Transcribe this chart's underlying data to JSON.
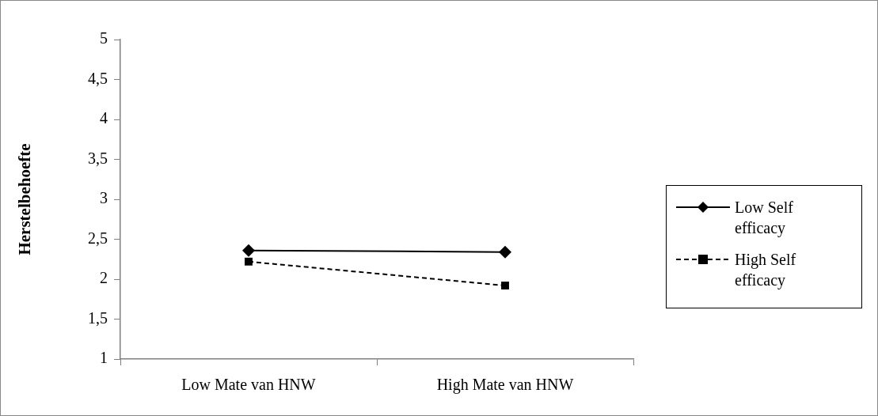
{
  "chart_data": {
    "type": "line",
    "ylabel": "Herstelbehoefte",
    "categories": [
      "Low Mate van HNW",
      "High Mate van HNW"
    ],
    "ylim": [
      1,
      5
    ],
    "yticks": [
      1,
      {
        "value": 1.5,
        "label": "1,5"
      },
      2,
      {
        "value": 2.5,
        "label": "2,5"
      },
      3,
      {
        "value": 3.5,
        "label": "3,5"
      },
      4,
      {
        "value": 4.5,
        "label": "4,5"
      },
      5
    ],
    "series": [
      {
        "name": "Low Self efficacy",
        "color": "#000000",
        "values": [
          2.36,
          2.34
        ],
        "marker": "diamond",
        "line_style": "solid"
      },
      {
        "name": "High Self efficacy",
        "color": "#000000",
        "values": [
          2.22,
          1.92
        ],
        "marker": "square",
        "line_style": "dashed"
      }
    ],
    "legend": "right"
  }
}
